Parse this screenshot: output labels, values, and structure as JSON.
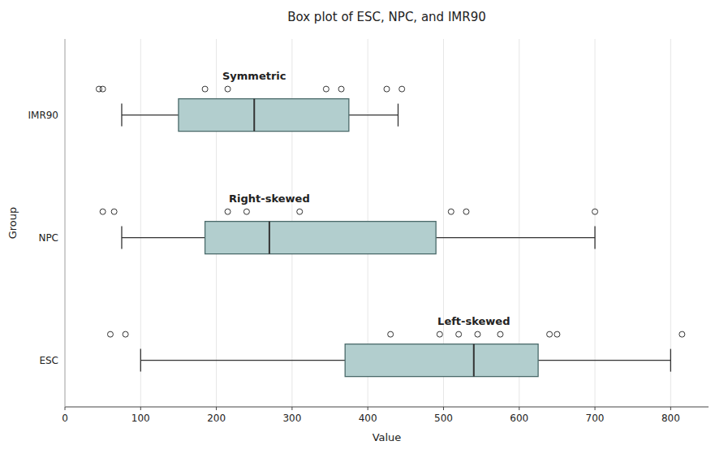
{
  "chart_data": {
    "type": "box",
    "orientation": "horizontal",
    "title": "Box plot of ESC, NPC, and IMR90",
    "xlabel": "Value",
    "ylabel": "Group",
    "categories": [
      "IMR90",
      "NPC",
      "ESC"
    ],
    "boxes": [
      {
        "whisker_low": 75,
        "q1": 150,
        "median": 250,
        "q3": 375,
        "whisker_high": 440,
        "outliers": [
          45,
          50,
          185,
          215,
          345,
          365,
          425,
          445
        ],
        "label": "Symmetric"
      },
      {
        "whisker_low": 75,
        "q1": 185,
        "median": 270,
        "q3": 490,
        "whisker_high": 700,
        "outliers": [
          50,
          65,
          215,
          240,
          310,
          510,
          530,
          700
        ],
        "label": "Right-skewed"
      },
      {
        "whisker_low": 100,
        "q1": 370,
        "median": 540,
        "q3": 625,
        "whisker_high": 800,
        "outliers": [
          60,
          80,
          430,
          495,
          520,
          545,
          575,
          640,
          650,
          815
        ],
        "label": "Left-skewed"
      }
    ],
    "xlim": [
      0,
      850
    ],
    "xticks": [
      0,
      100,
      200,
      300,
      400,
      500,
      600,
      700,
      800
    ],
    "grid": true,
    "color": "#b2cece"
  }
}
